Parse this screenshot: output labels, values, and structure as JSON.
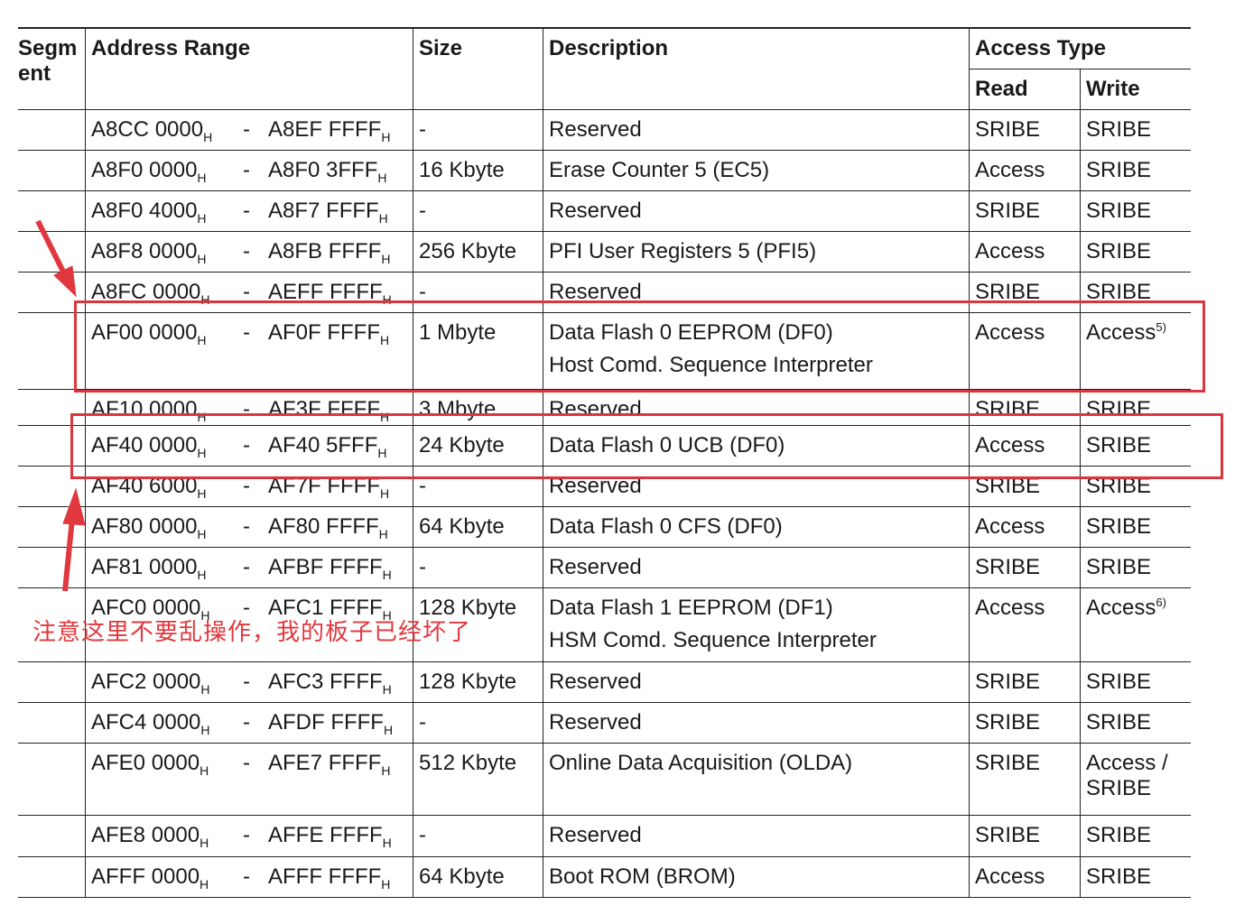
{
  "headers": {
    "segment": "Segm ent",
    "address": "Address Range",
    "size": "Size",
    "description": "Description",
    "access": "Access Type",
    "read": "Read",
    "write": "Write"
  },
  "rows": [
    {
      "start": "A8CC 0000",
      "end": "A8EF FFFF",
      "size": "-",
      "desc": [
        "Reserved"
      ],
      "read": "SRIBE",
      "write": "SRIBE"
    },
    {
      "start": "A8F0 0000",
      "end": "A8F0 3FFF",
      "size": "16 Kbyte",
      "desc": [
        "Erase Counter 5 (EC5)"
      ],
      "read": "Access",
      "write": "SRIBE"
    },
    {
      "start": "A8F0 4000",
      "end": "A8F7 FFFF",
      "size": "-",
      "desc": [
        "Reserved"
      ],
      "read": "SRIBE",
      "write": "SRIBE"
    },
    {
      "start": "A8F8 0000",
      "end": "A8FB FFFF",
      "size": "256 Kbyte",
      "desc": [
        "PFI User Registers 5 (PFI5)"
      ],
      "read": "Access",
      "write": "SRIBE"
    },
    {
      "start": "A8FC 0000",
      "end": "AEFF FFFF",
      "size": "-",
      "desc": [
        "Reserved"
      ],
      "read": "SRIBE",
      "write": "SRIBE"
    },
    {
      "start": "AF00 0000",
      "end": "AF0F FFFF",
      "size": "1 Mbyte",
      "desc": [
        "Data Flash 0 EEPROM (DF0)",
        "Host Comd. Sequence Interpreter"
      ],
      "read": "Access",
      "write": "Access",
      "write_note": "5)"
    },
    {
      "start": "AF10 0000",
      "end": "AF3F FFFF",
      "size": "3 Mbyte",
      "desc": [
        "Reserved"
      ],
      "read": "SRIBE",
      "write": "SRIBE"
    },
    {
      "start": "AF40 0000",
      "end": "AF40 5FFF",
      "size": "24 Kbyte",
      "desc": [
        "Data Flash 0 UCB (DF0)"
      ],
      "read": "Access",
      "write": "SRIBE"
    },
    {
      "start": "AF40 6000",
      "end": "AF7F FFFF",
      "size": "-",
      "desc": [
        "Reserved"
      ],
      "read": "SRIBE",
      "write": "SRIBE"
    },
    {
      "start": "AF80 0000",
      "end": "AF80 FFFF",
      "size": "64 Kbyte",
      "desc": [
        "Data Flash 0 CFS (DF0)"
      ],
      "read": "Access",
      "write": "SRIBE"
    },
    {
      "start": "AF81 0000",
      "end": "AFBF FFFF",
      "size": "-",
      "desc": [
        "Reserved"
      ],
      "read": "SRIBE",
      "write": "SRIBE"
    },
    {
      "start": "AFC0 0000",
      "end": "AFC1 FFFF",
      "size": "128 Kbyte",
      "desc": [
        "Data Flash 1 EEPROM (DF1)",
        "HSM Comd. Sequence Interpreter"
      ],
      "read": "Access",
      "write": "Access",
      "write_note": "6)"
    },
    {
      "start": "AFC2 0000",
      "end": "AFC3 FFFF",
      "size": "128 Kbyte",
      "desc": [
        "Reserved"
      ],
      "read": "SRIBE",
      "write": "SRIBE"
    },
    {
      "start": "AFC4 0000",
      "end": "AFDF FFFF",
      "size": "-",
      "desc": [
        "Reserved"
      ],
      "read": "SRIBE",
      "write": "SRIBE"
    },
    {
      "start": "AFE0 0000",
      "end": "AFE7 FFFF",
      "size": "512 Kbyte",
      "desc": [
        "Online Data Acquisition (OLDA)"
      ],
      "read": "SRIBE",
      "write": "Access / SRIBE"
    },
    {
      "start": "AFE8 0000",
      "end": "AFFE FFFF",
      "size": "-",
      "desc": [
        "Reserved"
      ],
      "read": "SRIBE",
      "write": "SRIBE"
    },
    {
      "start": "AFFF 0000",
      "end": "AFFF FFFF",
      "size": "64 Kbyte",
      "desc": [
        "Boot ROM (BROM)"
      ],
      "read": "Access",
      "write": "SRIBE"
    }
  ],
  "hex_suffix": "H",
  "dash": "-",
  "annotation": {
    "note": "注意这里不要乱操作，我的板子已经坏了",
    "color": "#e0383e"
  }
}
